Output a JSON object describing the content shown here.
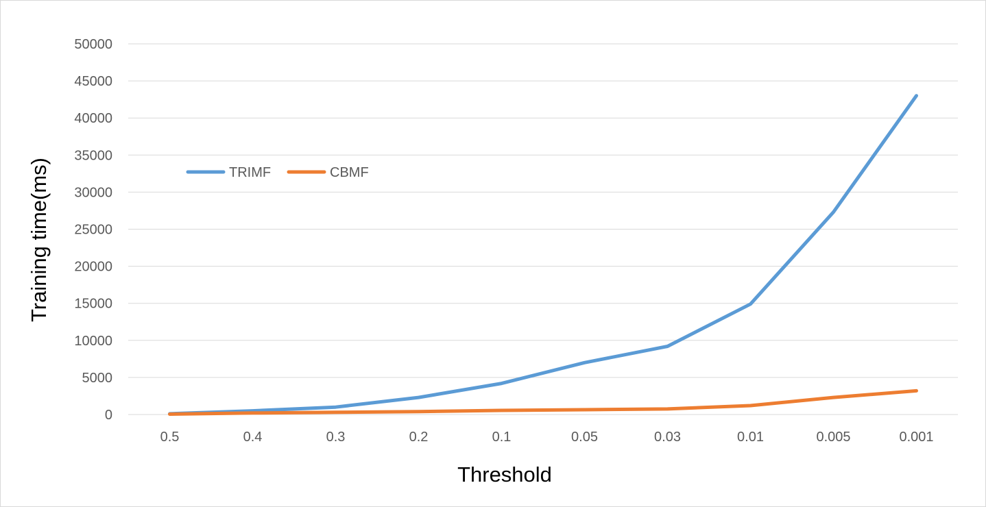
{
  "chart_data": {
    "type": "line",
    "title": "",
    "xlabel": "Threshold",
    "ylabel": "Training time(ms)",
    "categories": [
      "0.5",
      "0.4",
      "0.3",
      "0.2",
      "0.1",
      "0.05",
      "0.03",
      "0.01",
      "0.005",
      "0.001"
    ],
    "yticks": [
      "0",
      "5000",
      "10000",
      "15000",
      "20000",
      "25000",
      "30000",
      "35000",
      "40000",
      "45000",
      "50000"
    ],
    "ylim": [
      0,
      50000
    ],
    "grid": true,
    "legend": "upper-left",
    "series": [
      {
        "name": "TRIMF",
        "color": "#5b9bd5",
        "values": [
          100,
          500,
          1000,
          2300,
          4200,
          7000,
          9200,
          14900,
          27300,
          43000
        ]
      },
      {
        "name": "CBMF",
        "color": "#ed7d31",
        "values": [
          50,
          200,
          300,
          400,
          550,
          650,
          750,
          1200,
          2300,
          3200
        ]
      }
    ]
  }
}
